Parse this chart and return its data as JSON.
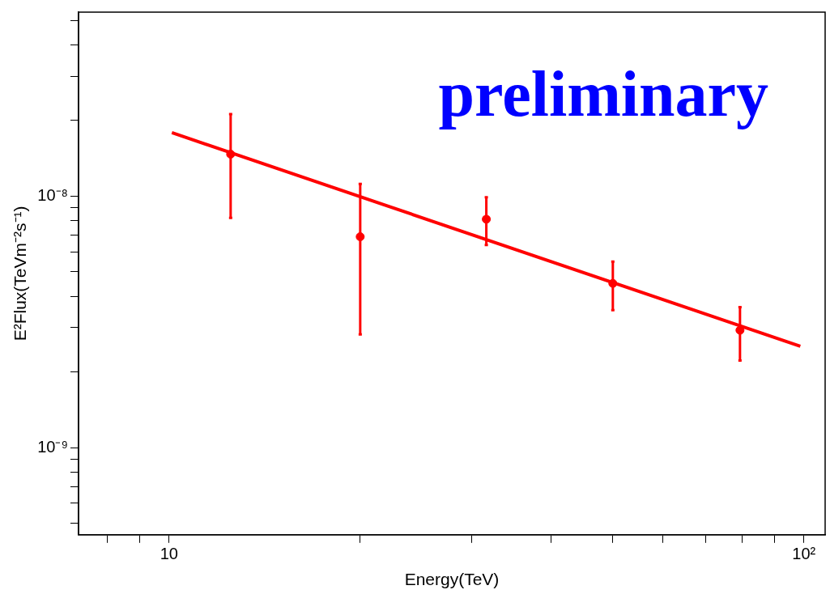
{
  "chart_data": {
    "type": "scatter",
    "xlabel": "Energy(TeV)",
    "ylabel": "E²Flux(TeVm⁻²s⁻¹)",
    "annotations": [
      "preliminary"
    ],
    "log": "xy",
    "grid": false,
    "legend": false,
    "marker": "circle",
    "xlim": [
      7.2,
      108
    ],
    "ylim": [
      4.5e-10,
      5.4e-08
    ],
    "xticks": [
      {
        "value": 8,
        "label": null
      },
      {
        "value": 9,
        "label": null
      },
      10,
      {
        "value": 20,
        "label": null
      },
      {
        "value": 30,
        "label": null
      },
      {
        "value": 40,
        "label": null
      },
      {
        "value": 50,
        "label": null
      },
      {
        "value": 60,
        "label": null
      },
      {
        "value": 70,
        "label": null
      },
      {
        "value": 80,
        "label": null
      },
      {
        "value": 90,
        "label": null
      },
      {
        "value": 100,
        "label": "10²"
      }
    ],
    "yticks": [
      {
        "value": 5e-10,
        "label": null
      },
      {
        "value": 6e-10,
        "label": null
      },
      {
        "value": 7e-10,
        "label": null
      },
      {
        "value": 8e-10,
        "label": null
      },
      {
        "value": 9e-10,
        "label": null
      },
      {
        "value": 1e-09,
        "label": "10⁻⁹"
      },
      {
        "value": 2e-09,
        "label": null
      },
      {
        "value": 3e-09,
        "label": null
      },
      {
        "value": 4e-09,
        "label": null
      },
      {
        "value": 5e-09,
        "label": null
      },
      {
        "value": 6e-09,
        "label": null
      },
      {
        "value": 7e-09,
        "label": null
      },
      {
        "value": 8e-09,
        "label": null
      },
      {
        "value": 9e-09,
        "label": null
      },
      {
        "value": 1e-08,
        "label": "10⁻⁸"
      },
      {
        "value": 2e-08,
        "label": null
      },
      {
        "value": 3e-08,
        "label": null
      },
      {
        "value": 4e-08,
        "label": null
      },
      {
        "value": 5e-08,
        "label": null
      }
    ],
    "series": [
      {
        "color": "#ff0000",
        "x": [
          12.5,
          20,
          31.6,
          50,
          79.3
        ],
        "values": [
          1.47e-08,
          6.9e-09,
          8.1e-09,
          4.5e-09,
          2.93e-09
        ],
        "errors": [
          [
            8.2e-09,
            2.12e-08
          ],
          [
            2.82e-09,
            1.12e-08
          ],
          [
            6.4e-09,
            9.9e-09
          ],
          [
            3.52e-09,
            5.5e-09
          ],
          [
            2.22e-09,
            3.62e-09
          ]
        ]
      },
      {
        "type": "line",
        "color": "#ff0000",
        "marker": "none",
        "x": [
          10.1,
          98.7
        ],
        "values": [
          1.79e-08,
          2.53e-09
        ]
      }
    ]
  }
}
